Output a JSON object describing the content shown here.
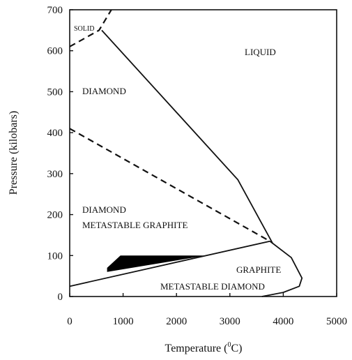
{
  "axes": {
    "x_title_prefix": "Temperature (",
    "x_title_sup": "0",
    "x_title_suffix": "C)",
    "y_title": "Pressure (kilobars)",
    "x_ticks": [
      "0",
      "1000",
      "2000",
      "3000",
      "4000",
      "5000"
    ],
    "y_ticks": [
      "0",
      "100",
      "200",
      "300",
      "400",
      "500",
      "600",
      "700"
    ]
  },
  "regions": {
    "solid": "SOLID",
    "liquid": "LIQUID",
    "diamond": "DIAMOND",
    "diamond_lower": "DIAMOND",
    "metastable_graphite": "METASTABLE GRAPHITE",
    "graphite": "GRAPHITE",
    "metastable_diamond": "METASTABLE DIAMOND"
  },
  "colors": {
    "line": "#111111",
    "filled_region": "#000000",
    "background": "#ffffff"
  },
  "chart_data": {
    "type": "diagram",
    "x_range": [
      0,
      5000
    ],
    "y_range": [
      0,
      700
    ],
    "boundaries": [
      {
        "style": "solid",
        "points": [
          [
            600,
            650
          ],
          [
            3150,
            285
          ],
          [
            3800,
            130
          ]
        ]
      },
      {
        "style": "dashed",
        "points": [
          [
            0,
            410
          ],
          [
            3750,
            135
          ]
        ]
      },
      {
        "style": "solid",
        "points": [
          [
            0,
            25
          ],
          [
            3750,
            135
          ]
        ]
      },
      {
        "style": "solid",
        "points": [
          [
            3750,
            135
          ],
          [
            4150,
            95
          ],
          [
            4350,
            45
          ],
          [
            4300,
            25
          ],
          [
            4000,
            10
          ],
          [
            3600,
            0
          ]
        ]
      },
      {
        "style": "dashed",
        "points": [
          [
            0,
            610
          ],
          [
            550,
            650
          ],
          [
            780,
            700
          ]
        ]
      }
    ],
    "filled_regions": [
      {
        "points": [
          [
            700,
            70
          ],
          [
            950,
            100
          ],
          [
            2550,
            100
          ],
          [
            700,
            60
          ]
        ]
      }
    ]
  }
}
